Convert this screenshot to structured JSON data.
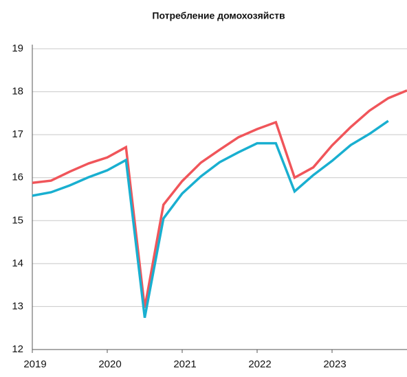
{
  "chart_data": {
    "type": "line",
    "title": "Потребление домохозяйств",
    "x": [
      2019,
      2019.25,
      2019.5,
      2019.75,
      2020,
      2020.25,
      2020.5,
      2020.75,
      2021,
      2021.25,
      2021.5,
      2021.75,
      2022,
      2022.25,
      2022.5,
      2022.75,
      2023,
      2023.25,
      2023.5,
      2023.75,
      2024
    ],
    "series": [
      {
        "color": "#f0555a",
        "values": [
          15.88,
          15.93,
          16.14,
          16.33,
          16.47,
          16.71,
          12.97,
          15.37,
          15.92,
          16.35,
          16.65,
          16.94,
          17.13,
          17.29,
          16.0,
          16.24,
          16.75,
          17.18,
          17.56,
          17.85,
          18.03
        ]
      },
      {
        "color": "#19afd0",
        "values": [
          15.58,
          15.66,
          15.82,
          16.01,
          16.17,
          16.41,
          12.74,
          15.05,
          15.63,
          16.03,
          16.36,
          16.59,
          16.8,
          16.8,
          15.68,
          16.06,
          16.39,
          16.76,
          17.02,
          17.32,
          null
        ]
      }
    ],
    "xlim": [
      2019,
      2024
    ],
    "xticks": [
      2019,
      2020,
      2021,
      2022,
      2023
    ],
    "ylim": [
      12,
      19
    ],
    "yticks": [
      12,
      13,
      14,
      15,
      16,
      17,
      18,
      19
    ],
    "grid": true
  }
}
